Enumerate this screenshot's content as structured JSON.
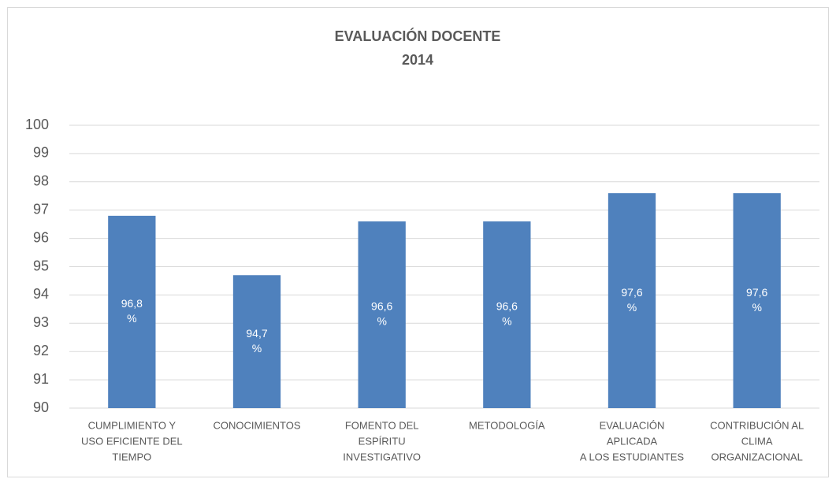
{
  "chart_data": {
    "type": "bar",
    "title": "EVALUACIÓN DOCENTE",
    "subtitle": "2014",
    "categories": [
      [
        "CUMPLIMIENTO Y",
        "USO EFICIENTE DEL",
        "TIEMPO"
      ],
      [
        "CONOCIMIENTOS"
      ],
      [
        "FOMENTO DEL",
        "ESPÍRITU",
        "INVESTIGATIVO"
      ],
      [
        "METODOLOGÍA"
      ],
      [
        "EVALUACIÓN",
        "APLICADA",
        "A LOS ESTUDIANTES"
      ],
      [
        "CONTRIBUCIÓN AL",
        "CLIMA",
        "ORGANIZACIONAL"
      ]
    ],
    "values": [
      96.8,
      94.7,
      96.6,
      96.6,
      97.6,
      97.6
    ],
    "value_labels": [
      [
        "96,8",
        "%"
      ],
      [
        "94,7",
        "%"
      ],
      [
        "96,6",
        "%"
      ],
      [
        "96,6",
        "%"
      ],
      [
        "97,6",
        "%"
      ],
      [
        "97,6",
        "%"
      ]
    ],
    "color": "#4f81bd",
    "ylim": [
      90,
      100
    ],
    "yticks": [
      90,
      91,
      92,
      93,
      94,
      95,
      96,
      97,
      98,
      99,
      100
    ],
    "grid": true
  }
}
